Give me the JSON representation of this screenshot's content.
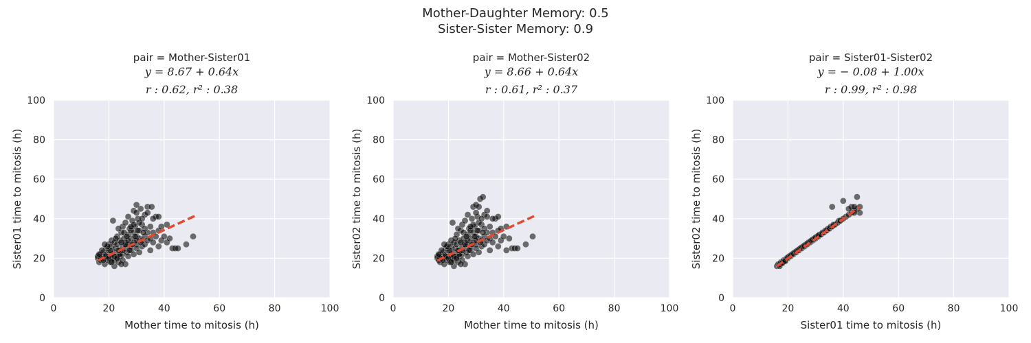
{
  "figure": {
    "suptitle_line1": "Mother-Daughter Memory: 0.5",
    "suptitle_line2": "Sister-Sister Memory: 0.9"
  },
  "colors": {
    "plot_background": "#eaeaf2",
    "grid": "#ffffff",
    "points": "#000000",
    "fit_line": "#e24a33"
  },
  "chart_data": [
    {
      "type": "scatter",
      "title": "pair = Mother-Sister01",
      "equation": "y = 8.67 + 0.64x",
      "stats": "r : 0.62, r² : 0.38",
      "xlabel": "Mother time to mitosis (h)",
      "ylabel": "Sister01 time to mitosis (h)",
      "xlim": [
        0,
        100
      ],
      "ylim": [
        0,
        100
      ],
      "xticks": [
        0,
        20,
        40,
        60,
        80,
        100
      ],
      "yticks": [
        0,
        20,
        40,
        60,
        80,
        100
      ],
      "grid": true,
      "fit": {
        "intercept": 8.67,
        "slope": 0.64,
        "x_range": [
          16,
          51
        ]
      },
      "points": [
        [
          16,
          20
        ],
        [
          16.5,
          18
        ],
        [
          17,
          22
        ],
        [
          17,
          19
        ],
        [
          17.5,
          21
        ],
        [
          18,
          20
        ],
        [
          18,
          23
        ],
        [
          18.5,
          17
        ],
        [
          19,
          22
        ],
        [
          19,
          25
        ],
        [
          19.5,
          19
        ],
        [
          20,
          21
        ],
        [
          20,
          24
        ],
        [
          20,
          27
        ],
        [
          20.5,
          18
        ],
        [
          21,
          22
        ],
        [
          21,
          26
        ],
        [
          21,
          29
        ],
        [
          21.5,
          20
        ],
        [
          22,
          23
        ],
        [
          22,
          19
        ],
        [
          22,
          28
        ],
        [
          22,
          16
        ],
        [
          22.5,
          25
        ],
        [
          23,
          21
        ],
        [
          23,
          27
        ],
        [
          23,
          31
        ],
        [
          23.5,
          18
        ],
        [
          24,
          24
        ],
        [
          24,
          29
        ],
        [
          24,
          21
        ],
        [
          24.5,
          33
        ],
        [
          25,
          26
        ],
        [
          25,
          22
        ],
        [
          25,
          36
        ],
        [
          25,
          19
        ],
        [
          25.5,
          30
        ],
        [
          26,
          25
        ],
        [
          26,
          28
        ],
        [
          26,
          38
        ],
        [
          26,
          17
        ],
        [
          26.5,
          23
        ],
        [
          27,
          27
        ],
        [
          27,
          32
        ],
        [
          27,
          21
        ],
        [
          27,
          41
        ],
        [
          27.5,
          35
        ],
        [
          28,
          26
        ],
        [
          28,
          30
        ],
        [
          28,
          24
        ],
        [
          28.5,
          39
        ],
        [
          29,
          28
        ],
        [
          29,
          33
        ],
        [
          29,
          22
        ],
        [
          29,
          44
        ],
        [
          29.5,
          36
        ],
        [
          30,
          27
        ],
        [
          30,
          31
        ],
        [
          30,
          25
        ],
        [
          30.5,
          40
        ],
        [
          31,
          30
        ],
        [
          31,
          34
        ],
        [
          31,
          23
        ],
        [
          31.5,
          45
        ],
        [
          32,
          29
        ],
        [
          32,
          37
        ],
        [
          32,
          26
        ],
        [
          33,
          31
        ],
        [
          33,
          42
        ],
        [
          33,
          27
        ],
        [
          34,
          33
        ],
        [
          34,
          29
        ],
        [
          34,
          46
        ],
        [
          35,
          30
        ],
        [
          35,
          36
        ],
        [
          36,
          28
        ],
        [
          36,
          33
        ],
        [
          37,
          31
        ],
        [
          37,
          41
        ],
        [
          38,
          26
        ],
        [
          38,
          34
        ],
        [
          39,
          29
        ],
        [
          39,
          36
        ],
        [
          40,
          31
        ],
        [
          41,
          37
        ],
        [
          41,
          28
        ],
        [
          42,
          30
        ],
        [
          43,
          25
        ],
        [
          44,
          25
        ],
        [
          45,
          25
        ],
        [
          48,
          27
        ],
        [
          50.5,
          31
        ],
        [
          16,
          21
        ],
        [
          17,
          20
        ],
        [
          18,
          19
        ],
        [
          19,
          21
        ],
        [
          20,
          20
        ],
        [
          21,
          18
        ],
        [
          22,
          21
        ],
        [
          23,
          20
        ],
        [
          24,
          22
        ],
        [
          25,
          24
        ],
        [
          26,
          27
        ],
        [
          27,
          29
        ],
        [
          28,
          34
        ],
        [
          29,
          37
        ],
        [
          30,
          29
        ],
        [
          31,
          38
        ],
        [
          32,
          40
        ],
        [
          33,
          35
        ],
        [
          34,
          43
        ],
        [
          35,
          24
        ],
        [
          36,
          40
        ],
        [
          38,
          41
        ],
        [
          30,
          47
        ],
        [
          35.5,
          46
        ],
        [
          21.5,
          39
        ],
        [
          23.5,
          35
        ],
        [
          24.5,
          28
        ],
        [
          25.5,
          33
        ],
        [
          26.5,
          31
        ],
        [
          27.5,
          24
        ],
        [
          28.5,
          27
        ],
        [
          29.5,
          31
        ],
        [
          30.5,
          34
        ],
        [
          31.5,
          28
        ],
        [
          32.5,
          33
        ],
        [
          20.5,
          24
        ],
        [
          19.5,
          26
        ],
        [
          18.5,
          27
        ],
        [
          17.5,
          24
        ],
        [
          16.5,
          22
        ],
        [
          22.5,
          30
        ],
        [
          23.5,
          24
        ],
        [
          24.5,
          17
        ],
        [
          28,
          36
        ],
        [
          30,
          43
        ]
      ]
    },
    {
      "type": "scatter",
      "title": "pair = Mother-Sister02",
      "equation": "y = 8.66 + 0.64x",
      "stats": "r : 0.61, r² : 0.37",
      "xlabel": "Mother time to mitosis (h)",
      "ylabel": "Sister02 time to mitosis (h)",
      "xlim": [
        0,
        100
      ],
      "ylim": [
        0,
        100
      ],
      "xticks": [
        0,
        20,
        40,
        60,
        80,
        100
      ],
      "yticks": [
        0,
        20,
        40,
        60,
        80,
        100
      ],
      "grid": true,
      "fit": {
        "intercept": 8.66,
        "slope": 0.64,
        "x_range": [
          16,
          51
        ]
      },
      "points": [
        [
          16,
          20
        ],
        [
          16.5,
          19
        ],
        [
          17,
          22
        ],
        [
          17,
          18
        ],
        [
          17.5,
          21
        ],
        [
          18,
          20
        ],
        [
          18,
          23
        ],
        [
          18.5,
          17
        ],
        [
          19,
          22
        ],
        [
          19,
          25
        ],
        [
          19.5,
          19
        ],
        [
          20,
          21
        ],
        [
          20,
          24
        ],
        [
          20,
          27
        ],
        [
          20.5,
          18
        ],
        [
          21,
          22
        ],
        [
          21,
          26
        ],
        [
          21,
          29
        ],
        [
          21.5,
          20
        ],
        [
          22,
          23
        ],
        [
          22,
          19
        ],
        [
          22,
          28
        ],
        [
          22,
          16
        ],
        [
          22.5,
          25
        ],
        [
          23,
          21
        ],
        [
          23,
          27
        ],
        [
          23,
          32
        ],
        [
          23.5,
          18
        ],
        [
          24,
          24
        ],
        [
          24,
          29
        ],
        [
          24,
          21
        ],
        [
          24.5,
          34
        ],
        [
          25,
          26
        ],
        [
          25,
          22
        ],
        [
          25,
          37
        ],
        [
          25,
          19
        ],
        [
          25.5,
          30
        ],
        [
          26,
          25
        ],
        [
          26,
          28
        ],
        [
          26,
          39
        ],
        [
          26,
          17
        ],
        [
          26.5,
          23
        ],
        [
          27,
          27
        ],
        [
          27,
          32
        ],
        [
          27,
          21
        ],
        [
          27,
          42
        ],
        [
          27.5,
          35
        ],
        [
          28,
          26
        ],
        [
          28,
          30
        ],
        [
          28,
          24
        ],
        [
          28.5,
          40
        ],
        [
          29,
          28
        ],
        [
          29,
          33
        ],
        [
          29,
          22
        ],
        [
          29,
          46
        ],
        [
          29.5,
          36
        ],
        [
          30,
          27
        ],
        [
          30,
          31
        ],
        [
          30,
          25
        ],
        [
          30.5,
          41
        ],
        [
          31,
          30
        ],
        [
          31,
          34
        ],
        [
          31,
          23
        ],
        [
          31.5,
          50
        ],
        [
          32,
          29
        ],
        [
          32,
          37
        ],
        [
          32,
          26
        ],
        [
          33,
          31
        ],
        [
          33,
          42
        ],
        [
          33,
          27
        ],
        [
          34,
          33
        ],
        [
          34,
          29
        ],
        [
          34,
          44
        ],
        [
          35,
          30
        ],
        [
          35,
          36
        ],
        [
          36,
          28
        ],
        [
          36,
          33
        ],
        [
          37,
          31
        ],
        [
          37,
          40
        ],
        [
          38,
          26
        ],
        [
          38,
          34
        ],
        [
          39,
          29
        ],
        [
          39,
          35
        ],
        [
          40,
          31
        ],
        [
          41,
          36
        ],
        [
          41,
          24
        ],
        [
          42,
          30
        ],
        [
          43,
          25
        ],
        [
          44,
          25
        ],
        [
          45,
          25
        ],
        [
          48,
          27
        ],
        [
          50.5,
          31
        ],
        [
          16,
          21
        ],
        [
          17,
          20
        ],
        [
          18,
          19
        ],
        [
          19,
          21
        ],
        [
          20,
          20
        ],
        [
          21,
          18
        ],
        [
          22,
          21
        ],
        [
          23,
          20
        ],
        [
          24,
          22
        ],
        [
          25,
          24
        ],
        [
          26,
          27
        ],
        [
          27,
          29
        ],
        [
          28,
          34
        ],
        [
          29,
          37
        ],
        [
          30,
          29
        ],
        [
          31,
          38
        ],
        [
          32,
          40
        ],
        [
          33,
          35
        ],
        [
          34,
          41
        ],
        [
          35,
          24
        ],
        [
          36,
          40
        ],
        [
          38,
          41
        ],
        [
          30,
          47
        ],
        [
          32.5,
          51
        ],
        [
          21.5,
          38
        ],
        [
          23.5,
          35
        ],
        [
          24.5,
          28
        ],
        [
          25.5,
          33
        ],
        [
          26.5,
          31
        ],
        [
          27.5,
          24
        ],
        [
          28.5,
          27
        ],
        [
          29.5,
          31
        ],
        [
          30.5,
          34
        ],
        [
          31.5,
          28
        ],
        [
          32.5,
          33
        ],
        [
          20.5,
          24
        ],
        [
          19.5,
          26
        ],
        [
          18.5,
          27
        ],
        [
          17.5,
          24
        ],
        [
          16.5,
          22
        ],
        [
          22.5,
          30
        ],
        [
          23.5,
          24
        ],
        [
          24.5,
          17
        ],
        [
          28,
          36
        ],
        [
          30,
          43
        ],
        [
          31,
          46
        ]
      ]
    },
    {
      "type": "scatter",
      "title": "pair = Sister01-Sister02",
      "equation": "y = − 0.08 + 1.00x",
      "stats": "r : 0.99, r² : 0.98",
      "xlabel": "Sister01 time to mitosis (h)",
      "ylabel": "Sister02 time to mitosis (h)",
      "xlim": [
        0,
        100
      ],
      "ylim": [
        0,
        100
      ],
      "xticks": [
        0,
        20,
        40,
        60,
        80,
        100
      ],
      "yticks": [
        0,
        20,
        40,
        60,
        80,
        100
      ],
      "grid": true,
      "fit": {
        "intercept": -0.08,
        "slope": 1.0,
        "x_range": [
          16,
          46
        ]
      },
      "points": [
        [
          16,
          16
        ],
        [
          16.5,
          17
        ],
        [
          17,
          17
        ],
        [
          17,
          16
        ],
        [
          17.5,
          18
        ],
        [
          18,
          18
        ],
        [
          18,
          17.5
        ],
        [
          18.5,
          19
        ],
        [
          19,
          19
        ],
        [
          19,
          18.5
        ],
        [
          19.5,
          20
        ],
        [
          20,
          20
        ],
        [
          20,
          20.5
        ],
        [
          20.5,
          21
        ],
        [
          21,
          21
        ],
        [
          21,
          21.5
        ],
        [
          21.5,
          22
        ],
        [
          22,
          22
        ],
        [
          22,
          22.5
        ],
        [
          22.5,
          23
        ],
        [
          23,
          23
        ],
        [
          23,
          23.5
        ],
        [
          23.5,
          24
        ],
        [
          24,
          24
        ],
        [
          24,
          24.5
        ],
        [
          24.5,
          25
        ],
        [
          25,
          25
        ],
        [
          25,
          25.5
        ],
        [
          25.5,
          26
        ],
        [
          26,
          26
        ],
        [
          26,
          26.5
        ],
        [
          26.5,
          27
        ],
        [
          27,
          27
        ],
        [
          27,
          27.5
        ],
        [
          27.5,
          28
        ],
        [
          28,
          28
        ],
        [
          28,
          28.5
        ],
        [
          28.5,
          29
        ],
        [
          29,
          29
        ],
        [
          29,
          29.5
        ],
        [
          29.5,
          30
        ],
        [
          30,
          30
        ],
        [
          30,
          30.5
        ],
        [
          30.5,
          31
        ],
        [
          31,
          31
        ],
        [
          31,
          31.5
        ],
        [
          31.5,
          32
        ],
        [
          32,
          32
        ],
        [
          32.5,
          33
        ],
        [
          33,
          33
        ],
        [
          33.5,
          34
        ],
        [
          34,
          34
        ],
        [
          34.5,
          35
        ],
        [
          35,
          35
        ],
        [
          35.5,
          36
        ],
        [
          36,
          36
        ],
        [
          36.5,
          37
        ],
        [
          37,
          37
        ],
        [
          38,
          38
        ],
        [
          38.5,
          39
        ],
        [
          39,
          39
        ],
        [
          40,
          40
        ],
        [
          41,
          41
        ],
        [
          42,
          42
        ],
        [
          43,
          43
        ],
        [
          44,
          44
        ],
        [
          45,
          45
        ],
        [
          46,
          46
        ],
        [
          36,
          46
        ],
        [
          40,
          49
        ],
        [
          43,
          46
        ],
        [
          44,
          46
        ],
        [
          45,
          51
        ],
        [
          46,
          43
        ],
        [
          42,
          45
        ],
        [
          44,
          43
        ]
      ]
    }
  ]
}
